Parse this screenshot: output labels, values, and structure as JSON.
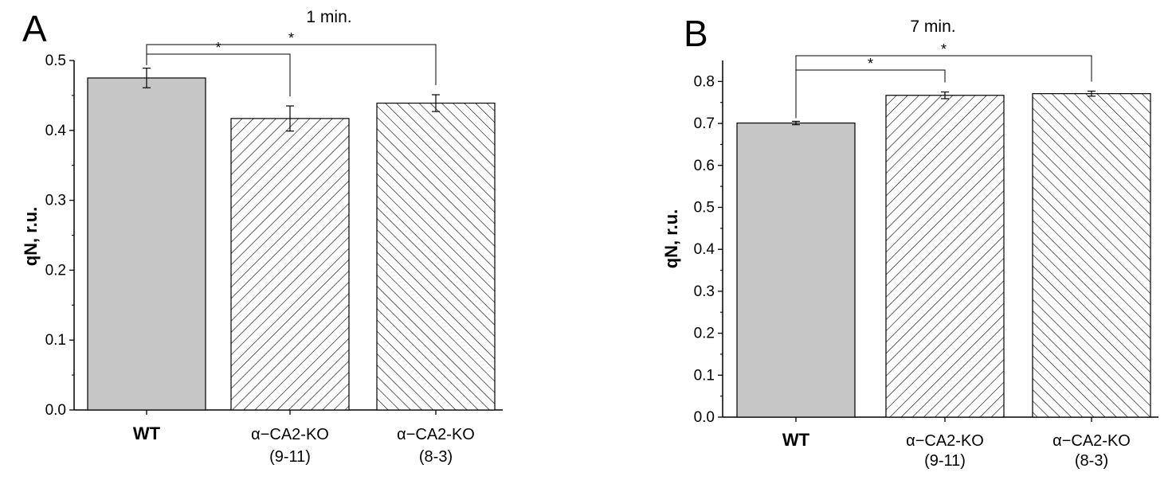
{
  "chart_data": [
    {
      "type": "bar",
      "panel": "A",
      "title": "1 min.",
      "ylabel": "qN, r.u.",
      "xlabel": "",
      "ylim": [
        0,
        0.5
      ],
      "yticks": [
        "0.0",
        "0.1",
        "0.2",
        "0.3",
        "0.4",
        "0.5"
      ],
      "categories": [
        {
          "line1": "WT",
          "line2": ""
        },
        {
          "line1": "α−CA2-KO",
          "line2": "(9-11)"
        },
        {
          "line1": "α−CA2-KO",
          "line2": "(8-3)"
        }
      ],
      "values": [
        0.475,
        0.417,
        0.439
      ],
      "errors": [
        0.014,
        0.018,
        0.012
      ],
      "fills": [
        "solid",
        "hatch-fwd",
        "hatch-back"
      ],
      "bar_color": "#c6c6c6",
      "significance": [
        {
          "from": 0,
          "to": 1,
          "label": "*"
        },
        {
          "from": 0,
          "to": 2,
          "label": "*"
        }
      ]
    },
    {
      "type": "bar",
      "panel": "B",
      "title": "7 min.",
      "ylabel": "qN, r.u.",
      "xlabel": "",
      "ylim": [
        0,
        0.85
      ],
      "yticks": [
        "0.0",
        "0.1",
        "0.2",
        "0.3",
        "0.4",
        "0.5",
        "0.6",
        "0.7",
        "0.8"
      ],
      "categories": [
        {
          "line1": "WT",
          "line2": ""
        },
        {
          "line1": "α−CA2-KO",
          "line2": "(9-11)"
        },
        {
          "line1": "α−CA2-KO",
          "line2": "(8-3)"
        }
      ],
      "values": [
        0.701,
        0.767,
        0.771
      ],
      "errors": [
        0.004,
        0.008,
        0.006
      ],
      "fills": [
        "solid",
        "hatch-fwd",
        "hatch-back"
      ],
      "bar_color": "#c6c6c6",
      "significance": [
        {
          "from": 0,
          "to": 1,
          "label": "*"
        },
        {
          "from": 0,
          "to": 2,
          "label": "*"
        }
      ]
    }
  ]
}
